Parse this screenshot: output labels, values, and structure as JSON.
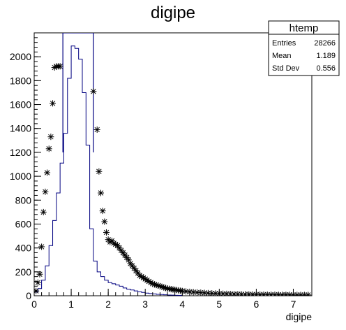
{
  "chart_data": {
    "type": "histogram",
    "title": "digipe",
    "xlabel": "digipe",
    "ylabel": "",
    "xlim": [
      0,
      7.5
    ],
    "ylim": [
      0,
      2200
    ],
    "x_ticks": [
      0,
      1,
      2,
      3,
      4,
      5,
      6,
      7
    ],
    "y_ticks": [
      0,
      200,
      400,
      600,
      800,
      1000,
      1200,
      1400,
      1600,
      1800,
      2000
    ],
    "grid": false,
    "legend": "none",
    "stats": {
      "title": "htemp",
      "entries_label": "Entries",
      "entries": "28266",
      "mean_label": "Mean",
      "mean": "1.189",
      "std_label": "Std Dev",
      "std": "0.556"
    },
    "series": [
      {
        "style": "step",
        "color": "#000080",
        "x": [
          0.05,
          0.15,
          0.25,
          0.35,
          0.45,
          0.55,
          0.65,
          0.75,
          0.85,
          0.95,
          1.05,
          1.15,
          1.25,
          1.35,
          1.45,
          1.55,
          1.65,
          1.75,
          1.85,
          1.95,
          2.05,
          2.15,
          2.25,
          2.35,
          2.45,
          2.55,
          2.65,
          2.75,
          2.85,
          2.95,
          3.05,
          3.15,
          3.25,
          3.35,
          3.45,
          3.55,
          3.65,
          3.75,
          3.85,
          3.95
        ],
        "y": [
          30,
          60,
          130,
          250,
          420,
          630,
          860,
          1110,
          1360,
          1820,
          2090,
          2070,
          1980,
          1700,
          1260,
          560,
          290,
          200,
          160,
          130,
          110,
          100,
          90,
          80,
          65,
          55,
          48,
          40,
          34,
          28,
          22,
          18,
          15,
          12,
          10,
          8,
          6,
          5,
          4,
          3
        ]
      },
      {
        "style": "line",
        "color": "#000080",
        "x": [
          0.775,
          0.775,
          1.6,
          1.6
        ],
        "y": [
          1200,
          2200,
          2200,
          1200
        ]
      },
      {
        "style": "markers",
        "marker": "asterisk",
        "color": "#000000",
        "x": [
          0.05,
          0.1,
          0.15,
          0.2,
          0.25,
          0.3,
          0.35,
          0.4,
          0.45,
          0.5,
          0.55,
          0.6,
          0.65,
          0.7,
          1.6,
          1.7,
          1.75,
          1.8,
          1.85,
          1.9,
          1.95,
          2.0,
          2.05,
          2.1,
          2.15,
          2.2,
          2.25,
          2.3,
          2.35,
          2.4,
          2.45,
          2.5,
          2.55,
          2.6,
          2.65,
          2.7,
          2.75,
          2.8,
          2.85,
          2.9,
          2.95,
          3.0,
          3.05,
          3.1,
          3.15,
          3.2,
          3.25,
          3.3,
          3.35,
          3.4,
          3.45,
          3.5,
          3.55,
          3.6,
          3.65,
          3.7,
          3.75,
          3.8,
          3.85,
          3.9,
          3.95,
          4.0,
          4.1,
          4.2,
          4.3,
          4.4,
          4.5,
          4.6,
          4.7,
          4.8,
          4.9,
          5.0,
          5.1,
          5.2,
          5.3,
          5.4,
          5.5,
          5.6,
          5.7,
          5.8,
          5.9,
          6.0,
          6.1,
          6.2,
          6.3,
          6.4,
          6.5,
          6.6,
          6.7,
          6.8,
          6.9,
          7.0,
          7.1,
          7.2,
          7.3,
          7.4
        ],
        "y": [
          40,
          110,
          180,
          410,
          700,
          870,
          1030,
          1230,
          1330,
          1610,
          1910,
          1920,
          1920,
          1920,
          1710,
          1390,
          1040,
          860,
          710,
          620,
          530,
          470,
          450,
          460,
          440,
          430,
          420,
          400,
          380,
          360,
          340,
          320,
          300,
          270,
          250,
          230,
          210,
          190,
          170,
          160,
          150,
          140,
          130,
          120,
          110,
          100,
          95,
          90,
          85,
          80,
          75,
          70,
          65,
          60,
          58,
          55,
          52,
          50,
          48,
          45,
          42,
          40,
          36,
          33,
          30,
          28,
          26,
          24,
          22,
          20,
          19,
          18,
          17,
          16,
          15,
          14,
          13,
          12,
          12,
          11,
          11,
          10,
          10,
          10,
          9,
          9,
          9,
          8,
          8,
          8,
          8,
          7,
          7,
          7,
          7,
          7
        ]
      }
    ]
  }
}
